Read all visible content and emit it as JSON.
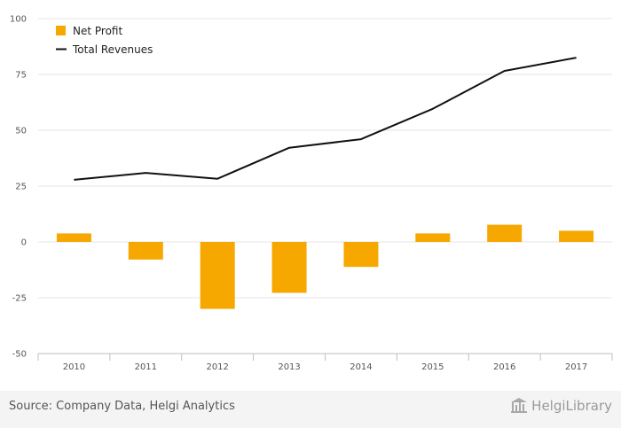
{
  "chart_data": {
    "type": "bar",
    "categories": [
      "2010",
      "2011",
      "2012",
      "2013",
      "2014",
      "2015",
      "2016",
      "2017"
    ],
    "series": [
      {
        "name": "Net Profit",
        "type": "bar",
        "color": "#F6A800",
        "values": [
          3.8,
          -7.9,
          -30.0,
          -22.8,
          -11.2,
          3.8,
          7.7,
          5.0
        ]
      },
      {
        "name": "Total Revenues",
        "type": "line",
        "color": "#111111",
        "values": [
          27.8,
          30.9,
          28.3,
          42.2,
          46.0,
          59.6,
          76.6,
          82.5
        ]
      }
    ],
    "y_ticks": [
      "100",
      "75",
      "50",
      "25",
      "0",
      "-25",
      "-50"
    ],
    "ylim": [
      -50,
      100
    ],
    "grid": true,
    "legend": "top-left"
  },
  "footer": {
    "source": "Source: Company Data, Helgi Analytics",
    "brand": "HelgiLibrary"
  },
  "icons": {
    "brand_icon": "library-building-icon"
  },
  "colors": {
    "bar": "#F6A800",
    "line": "#111111",
    "grid": "#e6e6e6",
    "axis": "#bfbfbf"
  }
}
